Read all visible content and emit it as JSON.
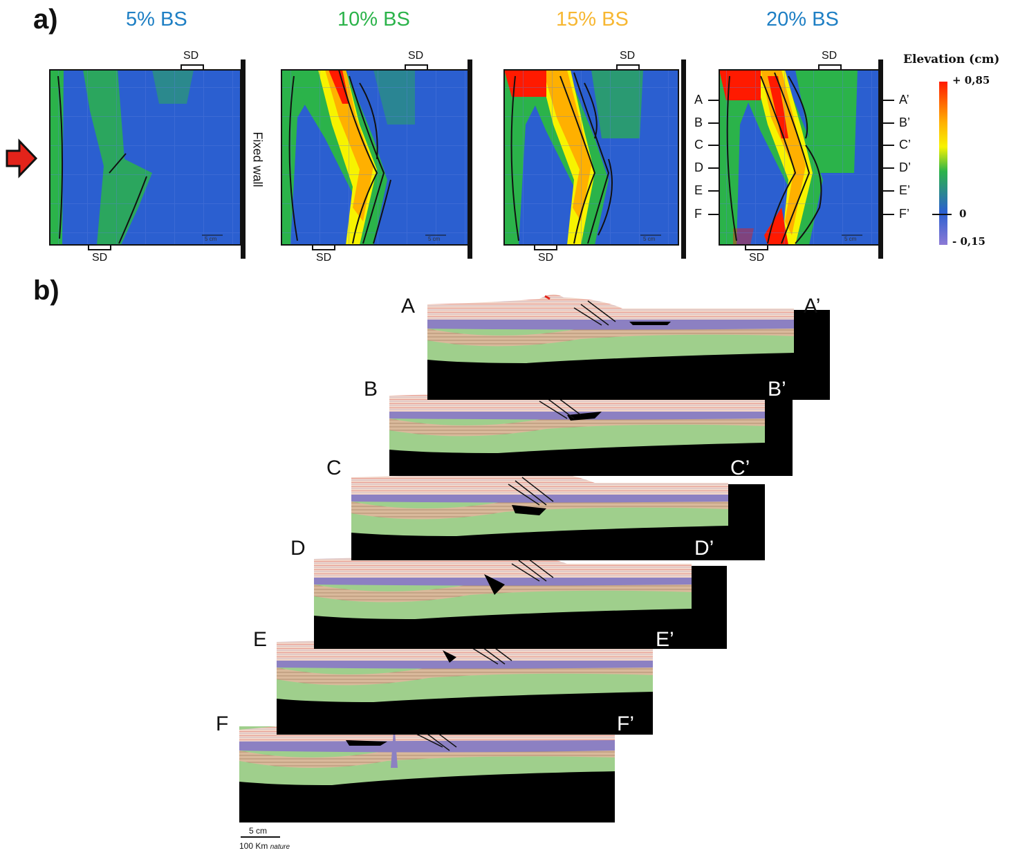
{
  "panel_a": {
    "label": "a)",
    "stages": [
      {
        "title": "5% BS",
        "color": "#1e7fc4"
      },
      {
        "title": "10% BS",
        "color": "#2bb34a"
      },
      {
        "title": "15% BS",
        "color": "#f7b731"
      },
      {
        "title": "20% BS",
        "color": "#1e7fc4"
      }
    ],
    "sd_label": "SD",
    "fixed_wall_label": "Fixed wall",
    "scale_label": "5 cm",
    "section_ticks_left": [
      "A",
      "B",
      "C",
      "D",
      "E",
      "F"
    ],
    "section_ticks_right": [
      "A’",
      "B’",
      "C’",
      "D’",
      "E’",
      "F’"
    ],
    "push_arrow": "red-arrow-icon"
  },
  "legend": {
    "title": "Elevation (cm)",
    "max_label": "+ 0,85",
    "zero_label": "0",
    "min_label": "- 0,15",
    "colors": [
      "#ff1a00",
      "#ffb000",
      "#f7f300",
      "#2bb34a",
      "#2b5fd0",
      "#8c7ad6"
    ]
  },
  "panel_b": {
    "label": "b)",
    "sections": [
      {
        "left": "A",
        "right": "A’"
      },
      {
        "left": "B",
        "right": "B’"
      },
      {
        "left": "C",
        "right": "C’"
      },
      {
        "left": "D",
        "right": "D’"
      },
      {
        "left": "E",
        "right": "E’"
      },
      {
        "left": "F",
        "right": "F’"
      }
    ],
    "scale_model": "5 cm",
    "scale_nature_value": "100 Km",
    "scale_nature_word": "nature"
  }
}
